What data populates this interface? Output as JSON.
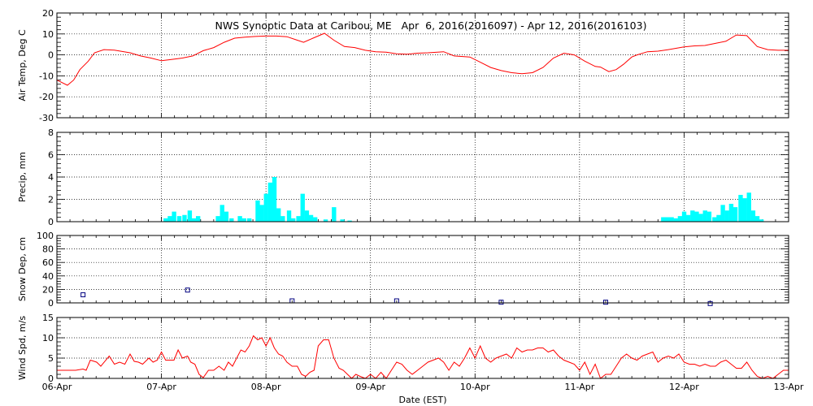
{
  "chart_data": {
    "type": "line",
    "title": "NWS Synoptic Data at Caribou, ME   Apr  6, 2016(2016097) - Apr 12, 2016(2016103)",
    "xlabel": "Date (EST)",
    "x_ticks": [
      "06-Apr",
      "07-Apr",
      "08-Apr",
      "09-Apr",
      "10-Apr",
      "11-Apr",
      "12-Apr",
      "13-Apr"
    ],
    "x_range_days": [
      0,
      7
    ],
    "grid": true,
    "panels": [
      {
        "id": "air_temp",
        "ylabel": "Air Temp, Deg C",
        "type": "line",
        "color": "#ff0000",
        "ylim": [
          -30,
          20
        ],
        "yticks": [
          -30,
          -20,
          -10,
          0,
          10,
          20
        ],
        "series": [
          [
            0.0,
            -12
          ],
          [
            0.1,
            -14.5
          ],
          [
            0.16,
            -12
          ],
          [
            0.22,
            -7
          ],
          [
            0.3,
            -3
          ],
          [
            0.36,
            1
          ],
          [
            0.45,
            2.5
          ],
          [
            0.55,
            2.3
          ],
          [
            0.7,
            1
          ],
          [
            0.8,
            -0.5
          ],
          [
            0.9,
            -1.5
          ],
          [
            1.0,
            -2.8
          ],
          [
            1.08,
            -2.3
          ],
          [
            1.2,
            -1.5
          ],
          [
            1.3,
            -0.5
          ],
          [
            1.4,
            2
          ],
          [
            1.5,
            3.5
          ],
          [
            1.6,
            6
          ],
          [
            1.7,
            8
          ],
          [
            1.8,
            8.5
          ],
          [
            1.9,
            8.8
          ],
          [
            2.0,
            9
          ],
          [
            2.1,
            9
          ],
          [
            2.2,
            8.7
          ],
          [
            2.3,
            7
          ],
          [
            2.36,
            6
          ],
          [
            2.45,
            8
          ],
          [
            2.56,
            10.3
          ],
          [
            2.65,
            7
          ],
          [
            2.75,
            4
          ],
          [
            2.85,
            3.5
          ],
          [
            2.95,
            2.2
          ],
          [
            3.05,
            1.5
          ],
          [
            3.15,
            1.3
          ],
          [
            3.25,
            0.5
          ],
          [
            3.35,
            0.3
          ],
          [
            3.45,
            0.8
          ],
          [
            3.55,
            1
          ],
          [
            3.7,
            1.5
          ],
          [
            3.8,
            -0.5
          ],
          [
            3.95,
            -1
          ],
          [
            4.05,
            -3.5
          ],
          [
            4.15,
            -6
          ],
          [
            4.25,
            -7.5
          ],
          [
            4.35,
            -8.5
          ],
          [
            4.45,
            -9
          ],
          [
            4.55,
            -8.5
          ],
          [
            4.65,
            -6
          ],
          [
            4.75,
            -1.5
          ],
          [
            4.85,
            0.8
          ],
          [
            4.95,
            0
          ],
          [
            5.05,
            -3
          ],
          [
            5.15,
            -5.5
          ],
          [
            5.2,
            -5.8
          ],
          [
            5.28,
            -8
          ],
          [
            5.35,
            -7
          ],
          [
            5.42,
            -4.5
          ],
          [
            5.5,
            -1
          ],
          [
            5.55,
            0
          ],
          [
            5.65,
            1.5
          ],
          [
            5.75,
            1.8
          ],
          [
            5.85,
            2.5
          ],
          [
            6.0,
            3.8
          ],
          [
            6.1,
            4.3
          ],
          [
            6.2,
            4.5
          ],
          [
            6.3,
            5.5
          ],
          [
            6.4,
            6.5
          ],
          [
            6.5,
            9.5
          ],
          [
            6.6,
            9.2
          ],
          [
            6.7,
            4
          ],
          [
            6.8,
            2.5
          ],
          [
            6.9,
            2.2
          ],
          [
            7.0,
            2.2
          ]
        ]
      },
      {
        "id": "precip",
        "ylabel": "Precip, mm",
        "type": "bar",
        "color": "#00ffff",
        "ylim": [
          0,
          8
        ],
        "yticks": [
          0,
          2,
          4,
          6,
          8
        ],
        "bar_width_days": 0.0417,
        "bars": [
          [
            1.02,
            0.3
          ],
          [
            1.06,
            0.5
          ],
          [
            1.1,
            0.9
          ],
          [
            1.15,
            0.5
          ],
          [
            1.2,
            0.6
          ],
          [
            1.25,
            1.0
          ],
          [
            1.29,
            0.3
          ],
          [
            1.33,
            0.5
          ],
          [
            1.52,
            0.5
          ],
          [
            1.56,
            1.5
          ],
          [
            1.6,
            0.9
          ],
          [
            1.65,
            0.3
          ],
          [
            1.73,
            0.5
          ],
          [
            1.77,
            0.3
          ],
          [
            1.82,
            0.3
          ],
          [
            1.9,
            1.9
          ],
          [
            1.94,
            1.5
          ],
          [
            1.98,
            2.5
          ],
          [
            2.02,
            3.5
          ],
          [
            2.06,
            4.0
          ],
          [
            2.1,
            1.2
          ],
          [
            2.14,
            0.5
          ],
          [
            2.2,
            1.0
          ],
          [
            2.24,
            0.3
          ],
          [
            2.29,
            0.5
          ],
          [
            2.33,
            2.5
          ],
          [
            2.37,
            1.0
          ],
          [
            2.41,
            0.6
          ],
          [
            2.45,
            0.4
          ],
          [
            2.55,
            0.2
          ],
          [
            2.63,
            1.3
          ],
          [
            2.71,
            0.2
          ],
          [
            2.78,
            0.1
          ],
          [
            5.78,
            0.4
          ],
          [
            5.82,
            0.4
          ],
          [
            5.86,
            0.4
          ],
          [
            5.9,
            0.3
          ],
          [
            5.94,
            0.5
          ],
          [
            5.98,
            0.9
          ],
          [
            6.02,
            0.6
          ],
          [
            6.06,
            1.0
          ],
          [
            6.1,
            0.9
          ],
          [
            6.14,
            0.7
          ],
          [
            6.18,
            1.0
          ],
          [
            6.22,
            0.9
          ],
          [
            6.27,
            0.4
          ],
          [
            6.31,
            0.6
          ],
          [
            6.35,
            1.5
          ],
          [
            6.39,
            1.0
          ],
          [
            6.43,
            1.6
          ],
          [
            6.47,
            1.3
          ],
          [
            6.52,
            2.4
          ],
          [
            6.56,
            2.1
          ],
          [
            6.6,
            2.6
          ],
          [
            6.64,
            1.0
          ],
          [
            6.68,
            0.5
          ],
          [
            6.72,
            0.2
          ]
        ]
      },
      {
        "id": "snow_depth",
        "ylabel": "Snow Dep, cm",
        "type": "scatter",
        "color": "#000080",
        "ylim": [
          0,
          100
        ],
        "yticks": [
          0,
          20,
          40,
          60,
          80,
          100
        ],
        "points": [
          [
            0.25,
            12
          ],
          [
            1.25,
            19
          ],
          [
            2.25,
            3
          ],
          [
            3.25,
            3
          ],
          [
            4.25,
            1
          ],
          [
            5.25,
            1
          ],
          [
            6.25,
            -1
          ]
        ]
      },
      {
        "id": "wind_speed",
        "ylabel": "Wind Spd, m/s",
        "type": "line",
        "color": "#ff0000",
        "ylim": [
          0,
          15
        ],
        "yticks": [
          0,
          5,
          10,
          15
        ],
        "series": [
          [
            0.0,
            2
          ],
          [
            0.12,
            2
          ],
          [
            0.18,
            2
          ],
          [
            0.25,
            2.3
          ],
          [
            0.28,
            2
          ],
          [
            0.32,
            4.5
          ],
          [
            0.38,
            4
          ],
          [
            0.42,
            3
          ],
          [
            0.5,
            5.5
          ],
          [
            0.55,
            3.5
          ],
          [
            0.6,
            4
          ],
          [
            0.65,
            3.5
          ],
          [
            0.7,
            6
          ],
          [
            0.74,
            4.2
          ],
          [
            0.78,
            4
          ],
          [
            0.82,
            3.5
          ],
          [
            0.88,
            5
          ],
          [
            0.92,
            4
          ],
          [
            0.96,
            4.5
          ],
          [
            1.0,
            6.5
          ],
          [
            1.04,
            4.5
          ],
          [
            1.08,
            4.5
          ],
          [
            1.12,
            4.5
          ],
          [
            1.16,
            7
          ],
          [
            1.2,
            5
          ],
          [
            1.25,
            5.5
          ],
          [
            1.28,
            4
          ],
          [
            1.32,
            3.5
          ],
          [
            1.36,
            1
          ],
          [
            1.4,
            0.2
          ],
          [
            1.45,
            2
          ],
          [
            1.5,
            2
          ],
          [
            1.55,
            3
          ],
          [
            1.6,
            2
          ],
          [
            1.64,
            4
          ],
          [
            1.68,
            3
          ],
          [
            1.72,
            5
          ],
          [
            1.76,
            7
          ],
          [
            1.8,
            6.5
          ],
          [
            1.84,
            8
          ],
          [
            1.88,
            10.5
          ],
          [
            1.92,
            9.5
          ],
          [
            1.96,
            10
          ],
          [
            2.0,
            8
          ],
          [
            2.04,
            10
          ],
          [
            2.08,
            7.5
          ],
          [
            2.12,
            6
          ],
          [
            2.16,
            5.5
          ],
          [
            2.2,
            4
          ],
          [
            2.25,
            3
          ],
          [
            2.3,
            3
          ],
          [
            2.34,
            1
          ],
          [
            2.38,
            0.5
          ],
          [
            2.42,
            1.5
          ],
          [
            2.46,
            2
          ],
          [
            2.5,
            8
          ],
          [
            2.55,
            9.5
          ],
          [
            2.6,
            9.5
          ],
          [
            2.65,
            5
          ],
          [
            2.7,
            2.5
          ],
          [
            2.74,
            2
          ],
          [
            2.78,
            1
          ],
          [
            2.82,
            0
          ],
          [
            2.86,
            1
          ],
          [
            2.9,
            0.5
          ],
          [
            2.95,
            0
          ],
          [
            3.0,
            1
          ],
          [
            3.05,
            0
          ],
          [
            3.1,
            1.5
          ],
          [
            3.15,
            0
          ],
          [
            3.2,
            2
          ],
          [
            3.25,
            4
          ],
          [
            3.3,
            3.5
          ],
          [
            3.35,
            2
          ],
          [
            3.4,
            1
          ],
          [
            3.45,
            2
          ],
          [
            3.5,
            3
          ],
          [
            3.55,
            4
          ],
          [
            3.6,
            4.5
          ],
          [
            3.65,
            5
          ],
          [
            3.7,
            4
          ],
          [
            3.75,
            2
          ],
          [
            3.8,
            4
          ],
          [
            3.85,
            3
          ],
          [
            3.9,
            5
          ],
          [
            3.95,
            7.5
          ],
          [
            4.0,
            5
          ],
          [
            4.05,
            8
          ],
          [
            4.1,
            5
          ],
          [
            4.15,
            4
          ],
          [
            4.2,
            5
          ],
          [
            4.25,
            5.5
          ],
          [
            4.3,
            6
          ],
          [
            4.35,
            5
          ],
          [
            4.4,
            7.5
          ],
          [
            4.45,
            6.5
          ],
          [
            4.5,
            7
          ],
          [
            4.55,
            7
          ],
          [
            4.6,
            7.5
          ],
          [
            4.65,
            7.5
          ],
          [
            4.7,
            6.5
          ],
          [
            4.75,
            7
          ],
          [
            4.8,
            5.5
          ],
          [
            4.85,
            4.5
          ],
          [
            4.9,
            4
          ],
          [
            4.95,
            3.5
          ],
          [
            5.0,
            2
          ],
          [
            5.05,
            4
          ],
          [
            5.1,
            1
          ],
          [
            5.15,
            3.5
          ],
          [
            5.2,
            0
          ],
          [
            5.25,
            1
          ],
          [
            5.3,
            1
          ],
          [
            5.35,
            3
          ],
          [
            5.4,
            5
          ],
          [
            5.45,
            6
          ],
          [
            5.5,
            5
          ],
          [
            5.55,
            4.5
          ],
          [
            5.6,
            5.5
          ],
          [
            5.65,
            6
          ],
          [
            5.7,
            6.5
          ],
          [
            5.75,
            4
          ],
          [
            5.8,
            5
          ],
          [
            5.85,
            5.5
          ],
          [
            5.9,
            5
          ],
          [
            5.95,
            6
          ],
          [
            6.0,
            4
          ],
          [
            6.05,
            3.5
          ],
          [
            6.1,
            3.5
          ],
          [
            6.15,
            3
          ],
          [
            6.2,
            3.5
          ],
          [
            6.25,
            3
          ],
          [
            6.3,
            3
          ],
          [
            6.35,
            4
          ],
          [
            6.4,
            4.5
          ],
          [
            6.45,
            3.5
          ],
          [
            6.5,
            2.5
          ],
          [
            6.55,
            2.5
          ],
          [
            6.6,
            4
          ],
          [
            6.65,
            2
          ],
          [
            6.7,
            0.5
          ],
          [
            6.75,
            0
          ],
          [
            6.8,
            0.5
          ],
          [
            6.85,
            0
          ],
          [
            6.9,
            1
          ],
          [
            6.95,
            2
          ],
          [
            7.0,
            2
          ]
        ]
      }
    ]
  }
}
